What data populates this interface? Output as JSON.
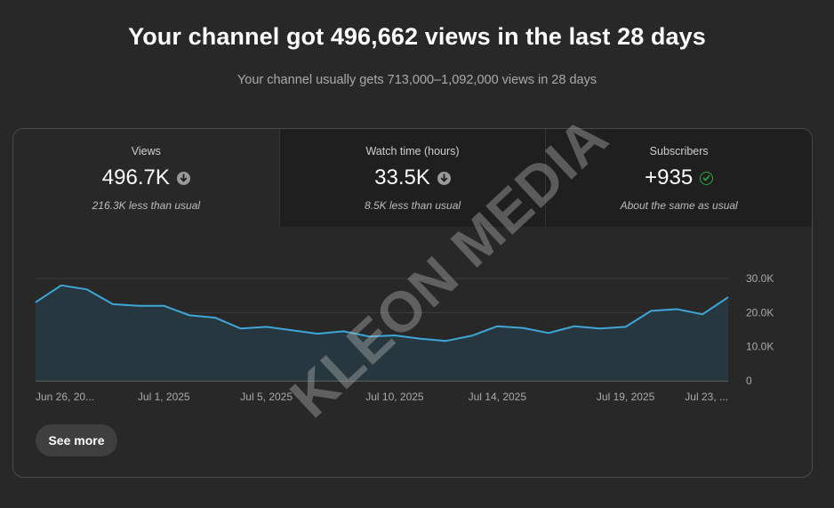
{
  "header": {
    "title": "Your channel got 496,662 views in the last 28 days",
    "subtitle": "Your channel usually gets 713,000–1,092,000 views in 28 days"
  },
  "metrics": [
    {
      "label": "Views",
      "value": "496.7K",
      "note": "216.3K less than usual",
      "icon": "arrow-down-circle-icon"
    },
    {
      "label": "Watch time (hours)",
      "value": "33.5K",
      "note": "8.5K less than usual",
      "icon": "arrow-down-circle-icon"
    },
    {
      "label": "Subscribers",
      "value": "+935",
      "note": "About the same as usual",
      "icon": "check-circle-icon"
    }
  ],
  "see_more_label": "See more",
  "watermark": "KLEON MEDIA",
  "colors": {
    "line": "#3ea6d8",
    "fill": "#263843",
    "check": "#2ba640"
  },
  "chart_data": {
    "type": "area",
    "x_tick_labels": [
      "Jun 26, 20...",
      "Jul 1, 2025",
      "Jul 5, 2025",
      "Jul 10, 2025",
      "Jul 14, 2025",
      "Jul 19, 2025",
      "Jul 23, ..."
    ],
    "x_tick_indices": [
      0,
      5,
      9,
      14,
      18,
      23,
      27
    ],
    "y_ticks": [
      "0",
      "10.0K",
      "20.0K",
      "30.0K"
    ],
    "ylim": [
      0,
      30000
    ],
    "series": [
      {
        "values": [
          23000,
          28000,
          26800,
          22500,
          22000,
          22000,
          19200,
          18500,
          15300,
          15800,
          14800,
          13800,
          14500,
          13000,
          13300,
          12300,
          11700,
          13200,
          16000,
          15500,
          14000,
          16000,
          15300,
          15800,
          20500,
          21000,
          19500,
          24500
        ]
      }
    ]
  }
}
